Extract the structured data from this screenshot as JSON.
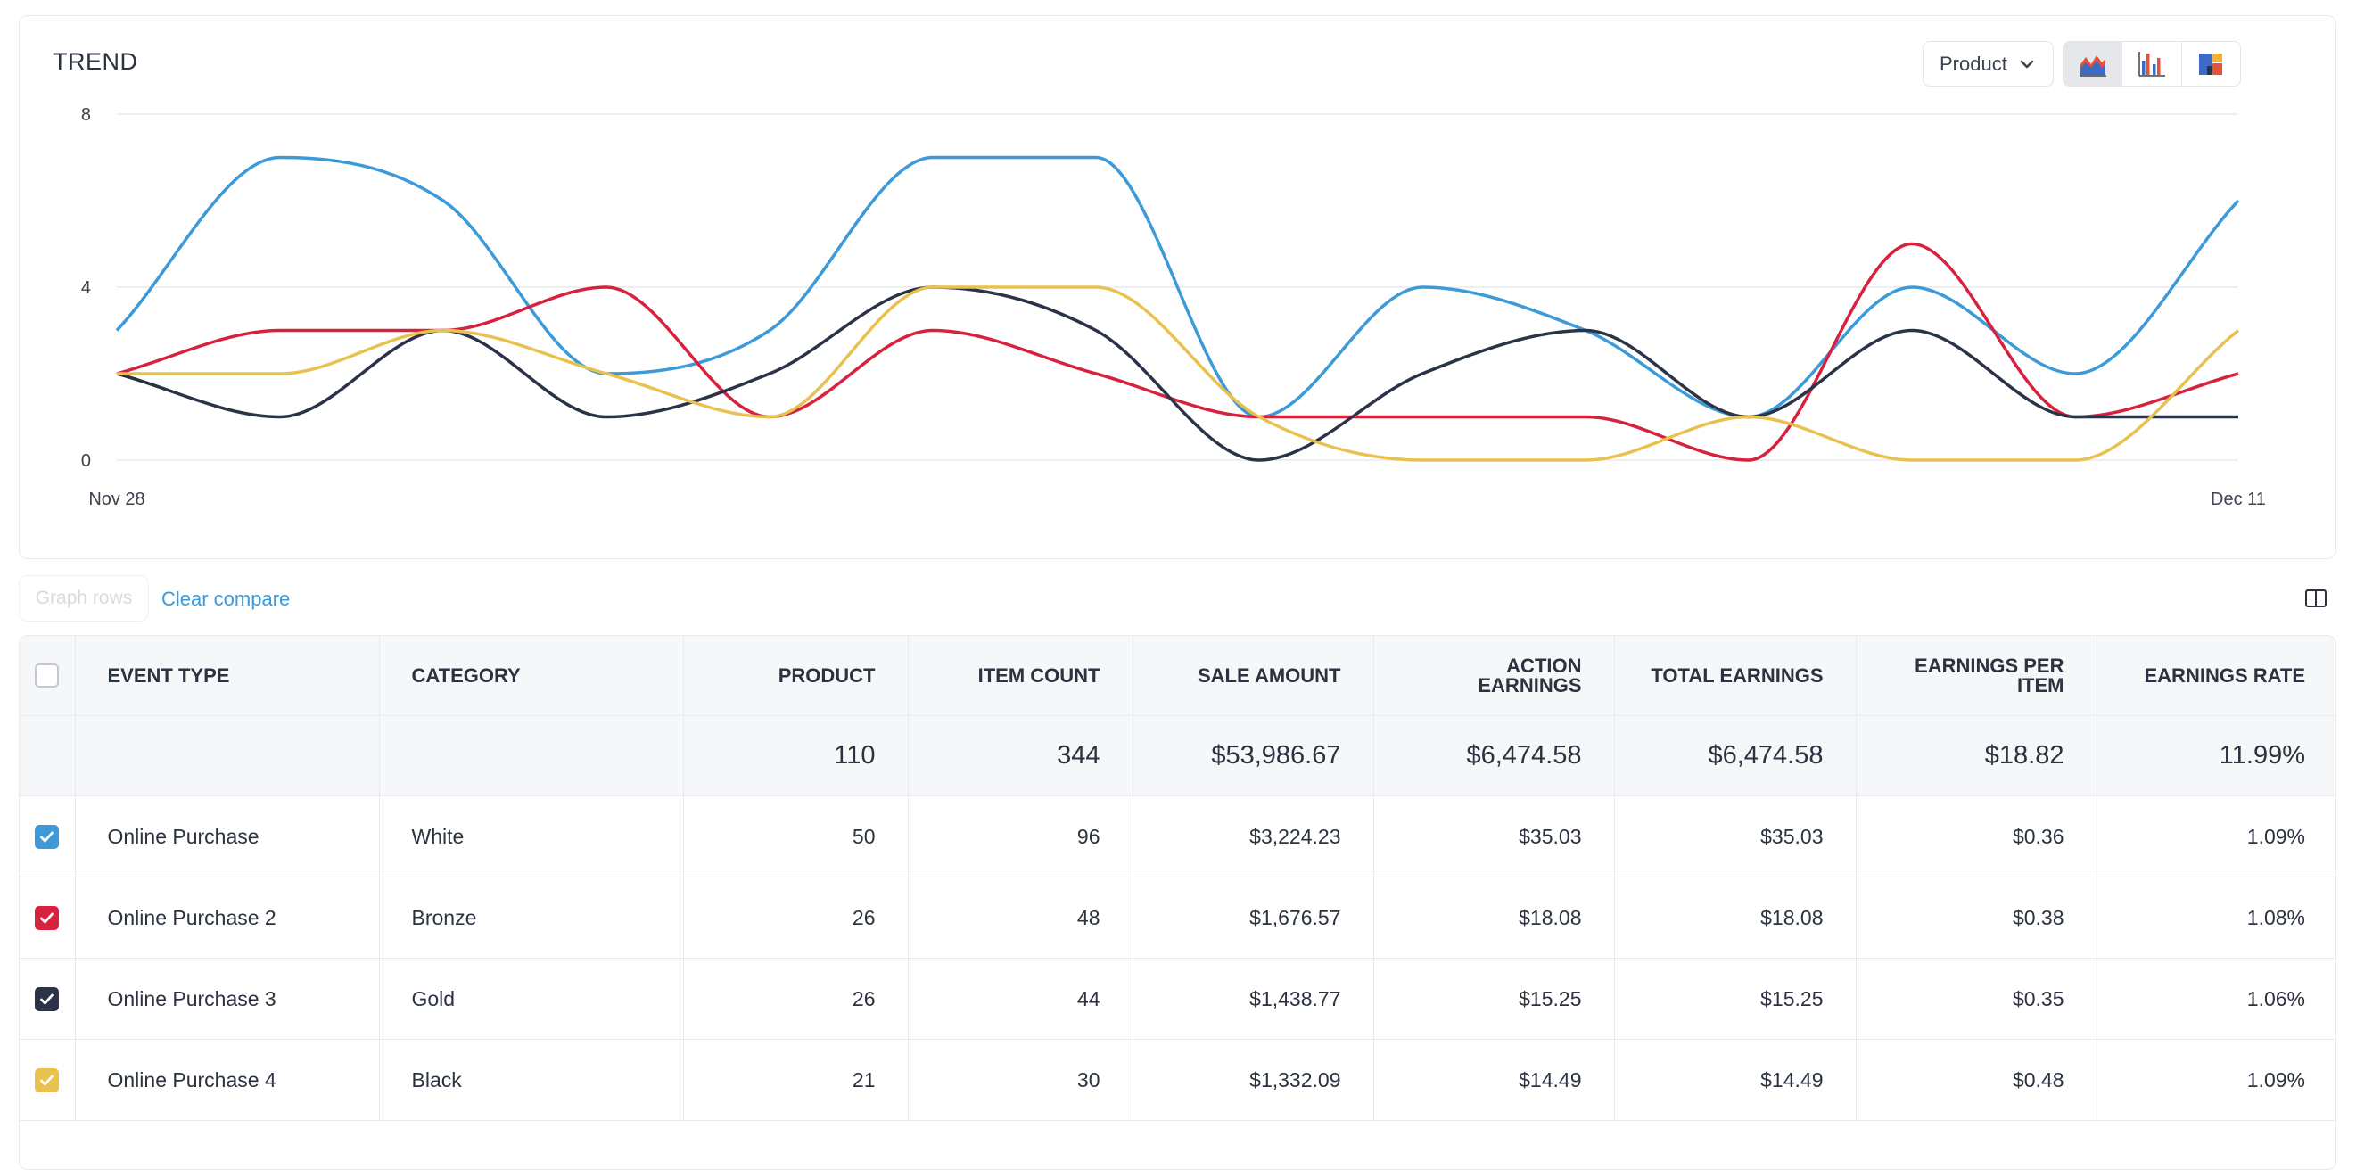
{
  "trend": {
    "title": "TREND",
    "dropdown_label": "Product",
    "chart_type_buttons": [
      "area-chart-icon",
      "bar-chart-icon",
      "treemap-icon"
    ]
  },
  "chart_data": {
    "type": "line",
    "x": [
      "Nov 28",
      "Nov 29",
      "Nov 30",
      "Dec 1",
      "Dec 2",
      "Dec 3",
      "Dec 4",
      "Dec 5",
      "Dec 6",
      "Dec 7",
      "Dec 8",
      "Dec 9",
      "Dec 10",
      "Dec 11"
    ],
    "x_tick_labels": [
      "Nov 28",
      "Dec 11"
    ],
    "y_ticks": [
      "8",
      "4",
      "0"
    ],
    "ylim": [
      0,
      8
    ],
    "grid": true,
    "series": [
      {
        "color": "#3d9ad9",
        "values": [
          3,
          7,
          6,
          2,
          3,
          7,
          7,
          1,
          4,
          3,
          1,
          4,
          2,
          6
        ]
      },
      {
        "color": "#d7223f",
        "values": [
          2,
          3,
          3,
          4,
          1,
          3,
          2,
          1,
          1,
          1,
          0,
          5,
          1,
          2
        ]
      },
      {
        "color": "#2a3347",
        "values": [
          2,
          1,
          3,
          1,
          2,
          4,
          3,
          0,
          2,
          3,
          1,
          3,
          1,
          1
        ]
      },
      {
        "color": "#e8c14e",
        "values": [
          2,
          2,
          3,
          2,
          1,
          4,
          4,
          1,
          0,
          0,
          1,
          0,
          0,
          3
        ]
      }
    ]
  },
  "toolbar": {
    "graph_rows_label": "Graph rows",
    "clear_compare_label": "Clear compare"
  },
  "table": {
    "headers": [
      "EVENT TYPE",
      "CATEGORY",
      "PRODUCT",
      "ITEM COUNT",
      "SALE AMOUNT",
      "ACTION EARNINGS",
      "TOTAL EARNINGS",
      "EARNINGS PER ITEM",
      "EARNINGS RATE"
    ],
    "totals": [
      "",
      "",
      "110",
      "344",
      "$53,986.67",
      "$6,474.58",
      "$6,474.58",
      "$18.82",
      "11.99%"
    ],
    "rows": [
      {
        "checkbox_color": "#3d9ad9",
        "cells": [
          "Online Purchase",
          "White",
          "50",
          "96",
          "$3,224.23",
          "$35.03",
          "$35.03",
          "$0.36",
          "1.09%"
        ]
      },
      {
        "checkbox_color": "#d7223f",
        "cells": [
          "Online Purchase 2",
          "Bronze",
          "26",
          "48",
          "$1,676.57",
          "$18.08",
          "$18.08",
          "$0.38",
          "1.08%"
        ]
      },
      {
        "checkbox_color": "#2a3347",
        "cells": [
          "Online Purchase 3",
          "Gold",
          "26",
          "44",
          "$1,438.77",
          "$15.25",
          "$15.25",
          "$0.35",
          "1.06%"
        ]
      },
      {
        "checkbox_color": "#e8c14e",
        "cells": [
          "Online Purchase 4",
          "Black",
          "21",
          "30",
          "$1,332.09",
          "$14.49",
          "$14.49",
          "$0.48",
          "1.09%"
        ]
      }
    ]
  }
}
